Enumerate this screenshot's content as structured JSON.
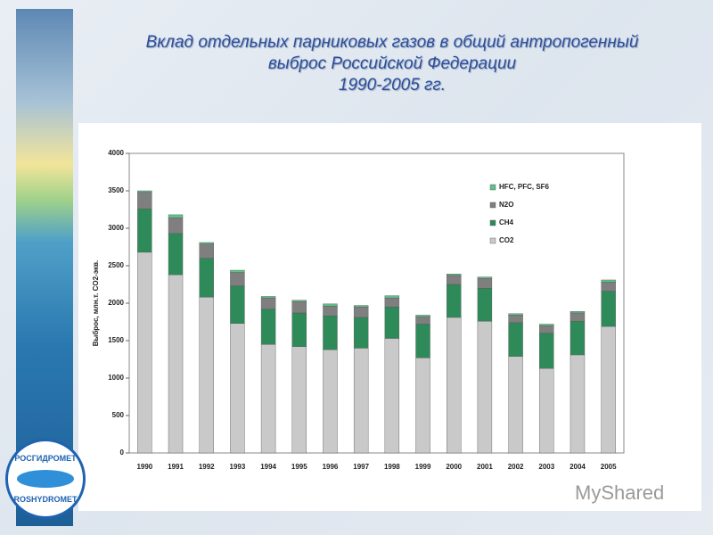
{
  "slide": {
    "title_lines": [
      "Вклад отдельных парниковых газов в общий антропогенный",
      "выброс Российской Федерации",
      "1990-2005 гг."
    ],
    "logo_top": "РОСГИДРОМЕТ",
    "logo_bottom": "ROSHYDROMET",
    "watermark": "MyShared"
  },
  "chart_data": {
    "type": "stacked_bar",
    "y_label": "Выброс, млн.т. CO2-экв.",
    "categories": [
      "1990",
      "1991",
      "1992",
      "1993",
      "1994",
      "1995",
      "1996",
      "1997",
      "1998",
      "1999",
      "2000",
      "2001",
      "2002",
      "2003",
      "2004",
      "2005"
    ],
    "series": [
      {
        "name": "CO2",
        "color": "#c9c9c9",
        "values": [
          2680,
          2380,
          2080,
          1730,
          1450,
          1420,
          1380,
          1400,
          1530,
          1270,
          1810,
          1760,
          1290,
          1130,
          1310,
          1690
        ]
      },
      {
        "name": "CH4",
        "color": "#2f8a5a",
        "values": [
          580,
          550,
          520,
          500,
          470,
          450,
          450,
          410,
          420,
          450,
          440,
          440,
          450,
          470,
          450,
          470
        ]
      },
      {
        "name": "N2O",
        "color": "#7f7f7f",
        "values": [
          220,
          210,
          190,
          180,
          150,
          150,
          130,
          140,
          120,
          100,
          120,
          130,
          100,
          100,
          110,
          120
        ]
      },
      {
        "name": "HFC, PFC, SF6",
        "color": "#5fc08a",
        "values": [
          20,
          40,
          20,
          30,
          20,
          20,
          30,
          20,
          30,
          20,
          20,
          20,
          20,
          20,
          20,
          30
        ]
      }
    ],
    "ylim": [
      0,
      4000
    ],
    "yticks": [
      0,
      500,
      1000,
      1500,
      2000,
      2500,
      3000,
      3500,
      4000
    ],
    "legend": "upper-right"
  }
}
